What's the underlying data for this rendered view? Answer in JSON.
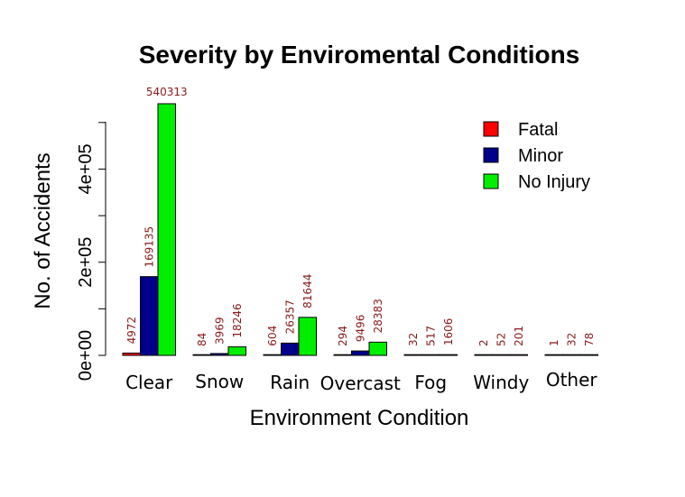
{
  "chart_data": {
    "type": "bar",
    "title": "Severity by Enviromental Conditions",
    "xlabel": "Environment Condition",
    "ylabel": "No. of Accidents",
    "ylim": [
      0,
      540313
    ],
    "yticks": [
      0,
      200000,
      400000
    ],
    "ytick_labels": [
      "0e+00",
      "2e+05",
      "4e+05"
    ],
    "grid": false,
    "legend_position": "top-right",
    "categories": [
      "Clear",
      "Snow",
      "Rain",
      "Overcast",
      "Fog",
      "Windy",
      "Other"
    ],
    "series": [
      {
        "name": "Fatal",
        "color": "#ff0000",
        "values": [
          4972,
          84,
          604,
          294,
          32,
          2,
          1
        ]
      },
      {
        "name": "Minor",
        "color": "#00008b",
        "values": [
          169135,
          3969,
          26357,
          9496,
          517,
          52,
          32
        ]
      },
      {
        "name": "No Injury",
        "color": "#00ee00",
        "values": [
          540313,
          18246,
          81644,
          28383,
          1606,
          201,
          78
        ]
      }
    ]
  }
}
